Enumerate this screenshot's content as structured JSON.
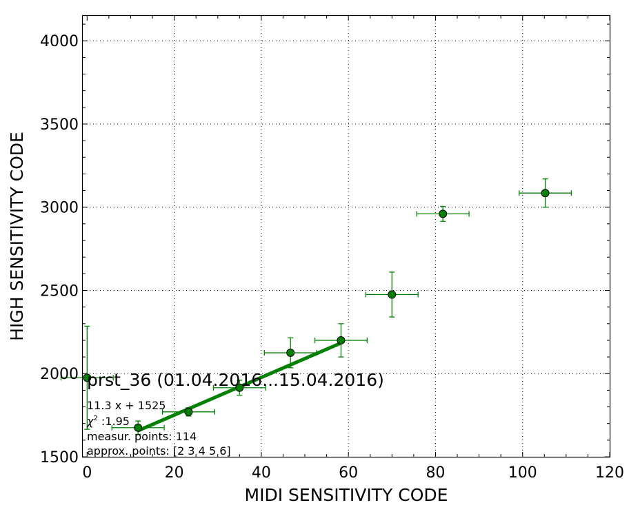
{
  "chart_data": {
    "type": "scatter",
    "title": "prst_36 (01.04.2016...15.04.2016)",
    "xlabel": "MIDI SENSITIVITY CODE",
    "ylabel": "HIGH SENSITIVITY CODE",
    "xlim": [
      -1,
      120
    ],
    "ylim": [
      1500,
      4150
    ],
    "x_ticks": [
      0,
      20,
      40,
      60,
      80,
      100,
      120
    ],
    "y_ticks": [
      1500,
      2000,
      2500,
      3000,
      3500,
      4000
    ],
    "x_tick_labels": [
      "0",
      "20",
      "40",
      "60",
      "80",
      "100",
      "120"
    ],
    "y_tick_labels": [
      "1500",
      "2000",
      "2500",
      "3000",
      "3500",
      "4000"
    ],
    "grid": true,
    "color": "#008000",
    "points": [
      {
        "x": 0,
        "y": 1975,
        "xerr": 6,
        "yerr": 310
      },
      {
        "x": 11.7,
        "y": 1675,
        "xerr": 6,
        "yerr": 40
      },
      {
        "x": 23.3,
        "y": 1770,
        "xerr": 6,
        "yerr": 25
      },
      {
        "x": 35,
        "y": 1915,
        "xerr": 6,
        "yerr": 45
      },
      {
        "x": 46.7,
        "y": 2125,
        "xerr": 6,
        "yerr": 90
      },
      {
        "x": 58.3,
        "y": 2200,
        "xerr": 6,
        "yerr": 100
      },
      {
        "x": 70,
        "y": 2475,
        "xerr": 6,
        "yerr": 135
      },
      {
        "x": 81.7,
        "y": 2960,
        "xerr": 6,
        "yerr": 45
      },
      {
        "x": 105.2,
        "y": 3085,
        "xerr": 6,
        "yerr": 85
      }
    ],
    "fit": {
      "slope": 11.3,
      "intercept": 1525,
      "x_range": [
        11.7,
        58.3
      ]
    },
    "annotations": {
      "fit_label": "11.3 x + 1525",
      "chi_symbol": "χ",
      "chi_label": " :1.95",
      "measur_points": "measur. points: 114",
      "approx_points": "approx. points: [2 3 4 5 6]"
    }
  }
}
